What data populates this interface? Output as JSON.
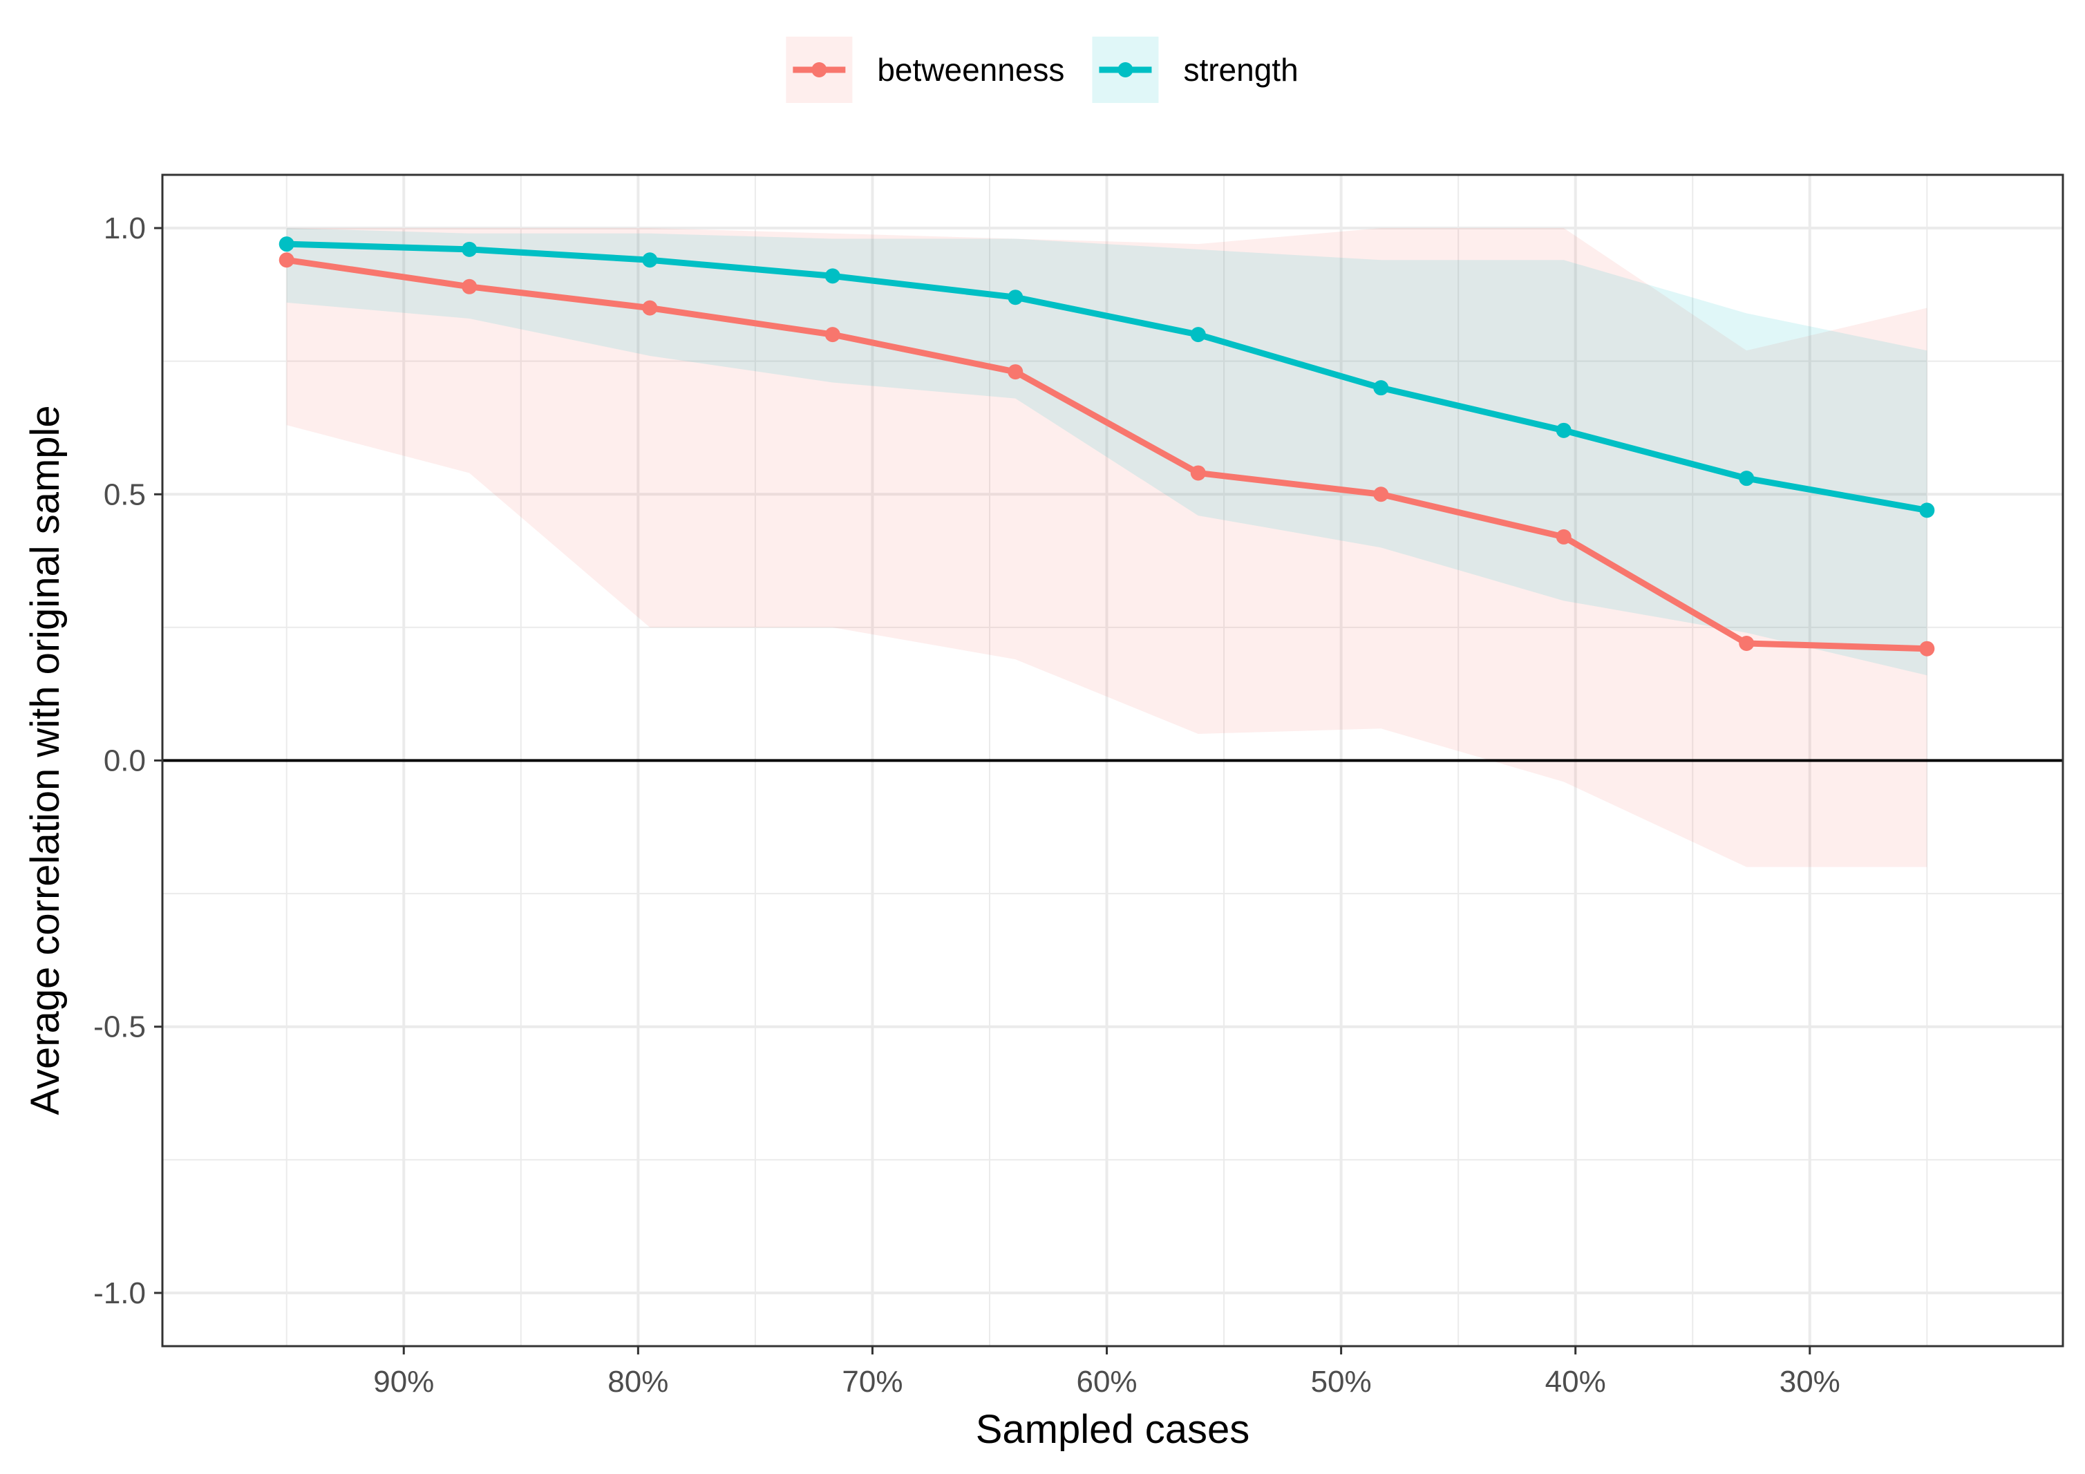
{
  "chart_data": {
    "type": "line",
    "title": "",
    "xlabel": "Sampled cases",
    "ylabel": "Average correlation with original sample",
    "x": [
      95,
      87.2,
      79.5,
      71.7,
      63.9,
      56.1,
      48.3,
      40.5,
      32.7,
      25
    ],
    "xlim": [
      100.3,
      19.2
    ],
    "ylim": [
      -1.1,
      1.1
    ],
    "x_ticks": [
      90,
      80,
      70,
      60,
      50,
      40,
      30
    ],
    "x_tick_labels": [
      "90%",
      "80%",
      "70%",
      "60%",
      "50%",
      "40%",
      "30%"
    ],
    "y_ticks": [
      1.0,
      0.5,
      0.0,
      -0.5,
      -1.0
    ],
    "y_tick_labels": [
      "1.0",
      "0.5",
      "0.0",
      "-0.5",
      "-1.0"
    ],
    "grid": true,
    "reference_line_y": 0,
    "legend_position": "top",
    "series": [
      {
        "name": "betweenness",
        "color": "#F8766D",
        "values": [
          0.94,
          0.89,
          0.85,
          0.8,
          0.73,
          0.54,
          0.5,
          0.42,
          0.22,
          0.21
        ],
        "lower": [
          0.63,
          0.54,
          0.25,
          0.25,
          0.19,
          0.05,
          0.06,
          -0.04,
          -0.2,
          -0.2
        ],
        "upper": [
          1.0,
          1.0,
          1.0,
          0.99,
          0.98,
          0.97,
          1.0,
          1.0,
          0.77,
          0.85
        ]
      },
      {
        "name": "strength",
        "color": "#00BFC4",
        "values": [
          0.97,
          0.96,
          0.94,
          0.91,
          0.87,
          0.8,
          0.7,
          0.62,
          0.53,
          0.47
        ],
        "lower": [
          0.86,
          0.83,
          0.76,
          0.71,
          0.68,
          0.46,
          0.4,
          0.3,
          0.24,
          0.16
        ],
        "upper": [
          1.0,
          0.99,
          0.99,
          0.98,
          0.98,
          0.96,
          0.94,
          0.94,
          0.84,
          0.77
        ]
      }
    ]
  }
}
